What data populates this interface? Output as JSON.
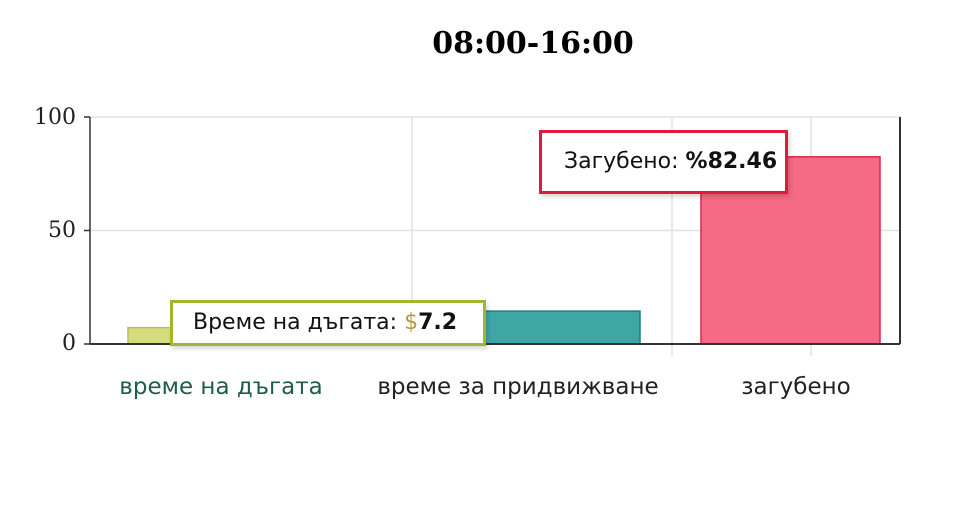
{
  "chart_data": {
    "type": "bar",
    "title": "08:00-16:00",
    "categories": [
      "време на дъгата",
      "време за придвижване",
      "загубено"
    ],
    "values": [
      7.2,
      14.5,
      82.46
    ],
    "colors": [
      "#d6dc7e",
      "#3fa6a6",
      "#f56a84"
    ],
    "ylim": [
      0,
      100
    ],
    "yticks": [
      "0",
      "50",
      "100"
    ],
    "grid": true,
    "tooltips": [
      {
        "label": "Време на дъгата: ",
        "prefix": "$",
        "value": "7.2",
        "border": "#a3b52a"
      },
      {
        "label": "Загубено: ",
        "prefix": "%",
        "value": "82.46",
        "border": "#e0193f"
      }
    ]
  }
}
